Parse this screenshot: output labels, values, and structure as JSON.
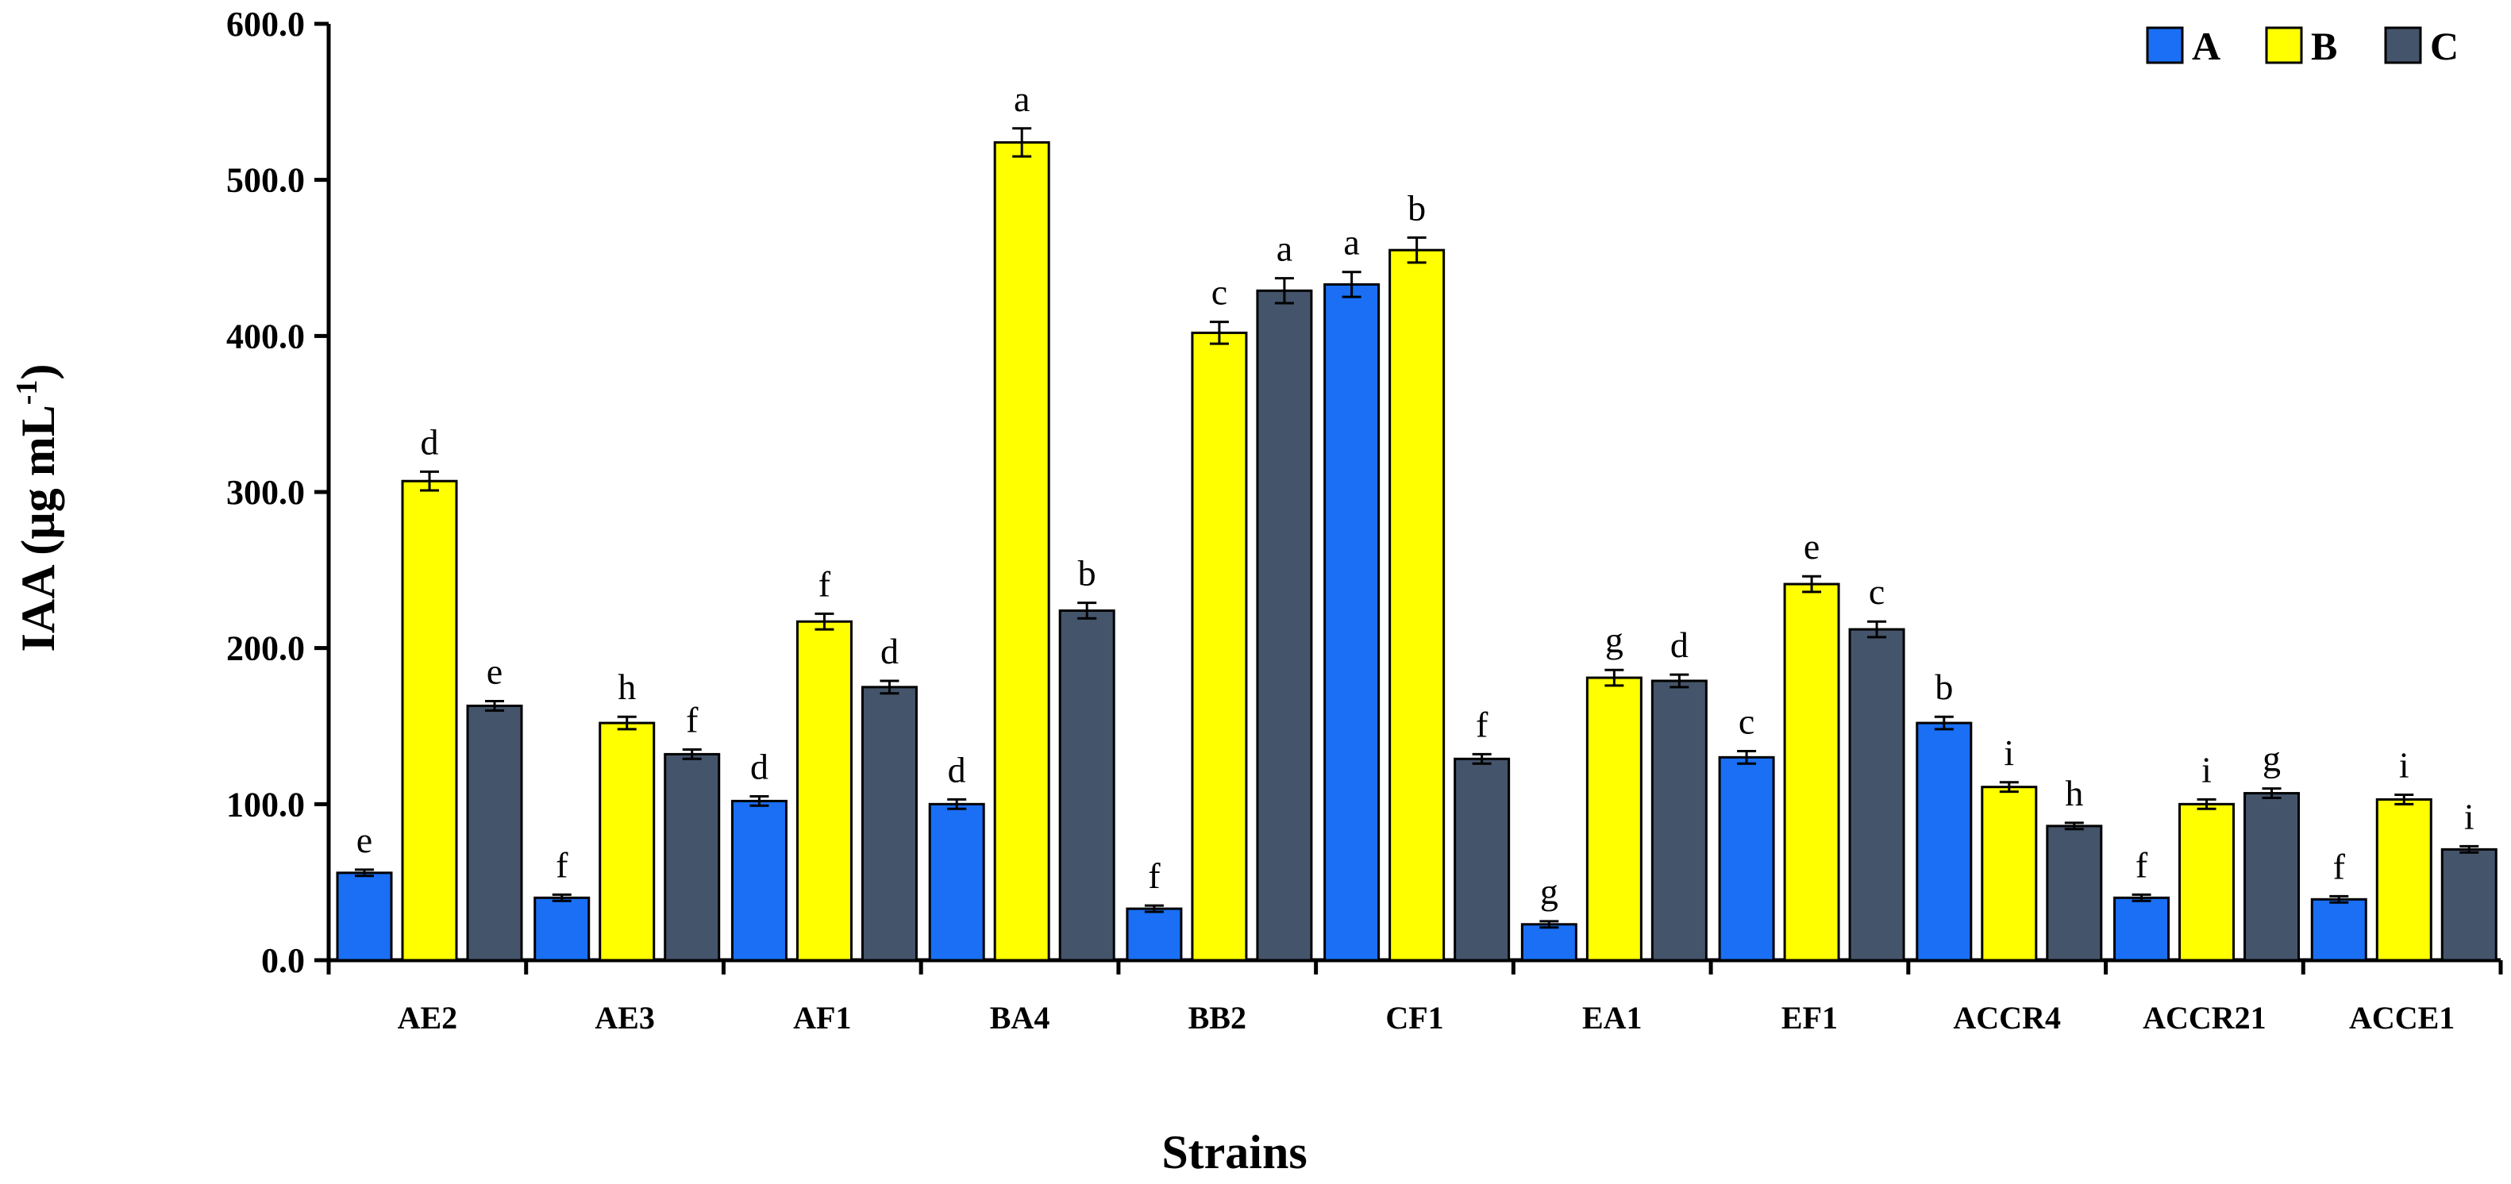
{
  "chart_data": {
    "type": "bar",
    "title": "",
    "xlabel": "Strains",
    "ylabel_main": "IAA (µg mL",
    "ylabel_sup": "-1",
    "ylabel_close": ")",
    "ylim": [
      0,
      600
    ],
    "ytick_values": [
      0,
      100,
      200,
      300,
      400,
      500,
      600
    ],
    "ytick_labels": [
      "0.0",
      "100.0",
      "200.0",
      "300.0",
      "400.0",
      "500.0",
      "600.0"
    ],
    "categories": [
      "AE2",
      "AE3",
      "AF1",
      "BA4",
      "BB2",
      "CF1",
      "EA1",
      "EF1",
      "ACCR4",
      "ACCR21",
      "ACCE1"
    ],
    "legend_position": "top-right",
    "series": [
      {
        "name": "A",
        "color": "#1a6ff5",
        "values": [
          56,
          40,
          102,
          100,
          33,
          433,
          23,
          130,
          152,
          40,
          39
        ],
        "errors": [
          2,
          2,
          3,
          3,
          2,
          8,
          2,
          4,
          4,
          2,
          2
        ],
        "letters": [
          "e",
          "f",
          "d",
          "d",
          "f",
          "a",
          "g",
          "c",
          "b",
          "f",
          "f"
        ]
      },
      {
        "name": "B",
        "color": "#ffff00",
        "values": [
          307,
          152,
          217,
          524,
          402,
          455,
          181,
          241,
          111,
          100,
          103
        ],
        "errors": [
          6,
          4,
          5,
          9,
          7,
          8,
          5,
          5,
          3,
          3,
          3
        ],
        "letters": [
          "d",
          "h",
          "f",
          "a",
          "c",
          "b",
          "g",
          "e",
          "i",
          "i",
          "i"
        ]
      },
      {
        "name": "C",
        "color": "#44546a",
        "values": [
          163,
          132,
          175,
          224,
          429,
          129,
          179,
          212,
          86,
          107,
          71
        ],
        "errors": [
          3,
          3,
          4,
          5,
          8,
          3,
          4,
          5,
          2,
          3,
          2
        ],
        "letters": [
          "e",
          "f",
          "d",
          "b",
          "a",
          "f",
          "d",
          "c",
          "h",
          "g",
          "i"
        ]
      }
    ]
  }
}
